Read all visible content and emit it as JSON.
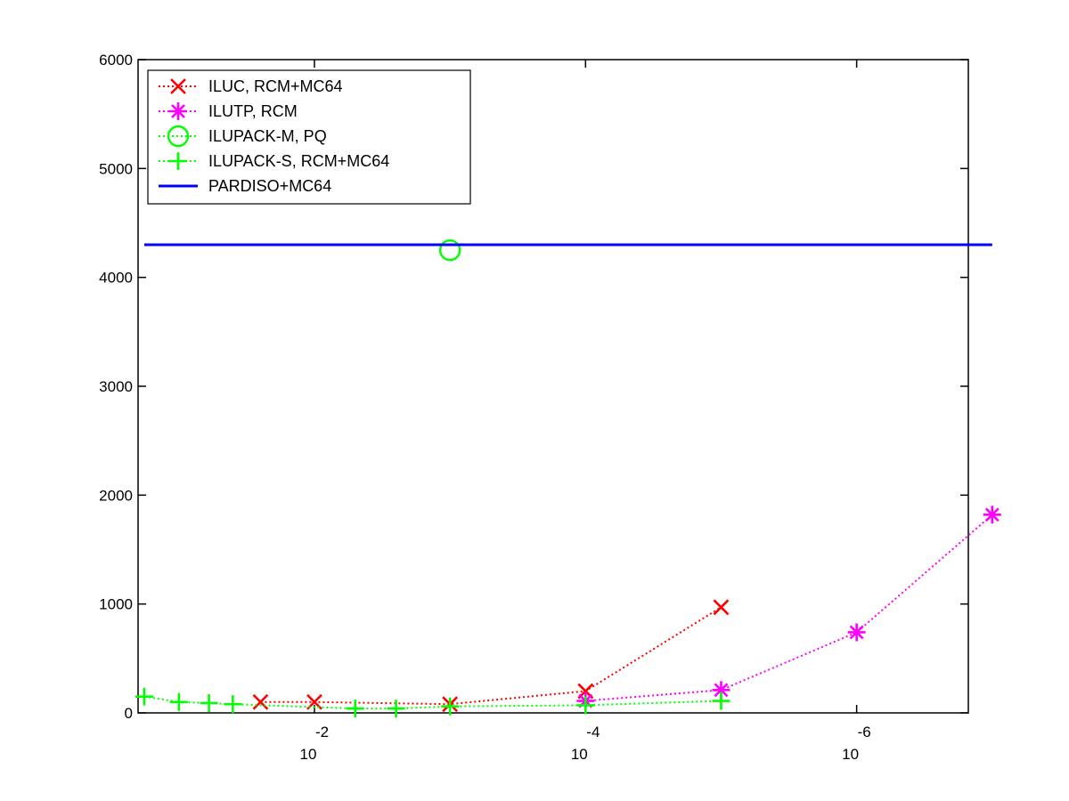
{
  "chart_data": {
    "type": "line",
    "title": "",
    "xlabel": "",
    "ylabel": "",
    "xscale": "log",
    "x_reversed": true,
    "xlim": [
      0.2,
      1.5e-07
    ],
    "ylim": [
      0,
      6000
    ],
    "grid": false,
    "legend_position": "top-left",
    "xticks": [
      {
        "value": 0.01,
        "base": "10",
        "exp": "-2"
      },
      {
        "value": 0.0001,
        "base": "10",
        "exp": "-4"
      },
      {
        "value": 1e-06,
        "base": "10",
        "exp": "-6"
      }
    ],
    "yticks": [
      0,
      1000,
      2000,
      3000,
      4000,
      5000,
      6000
    ],
    "series": [
      {
        "name": "ILUC, RCM+MC64",
        "color": "#ff0000",
        "marker": "x",
        "line": "dotted",
        "points": [
          {
            "x": 0.025,
            "y": 100
          },
          {
            "x": 0.01,
            "y": 100
          },
          {
            "x": 0.001,
            "y": 80
          },
          {
            "x": 0.0001,
            "y": 200
          },
          {
            "x": 1e-05,
            "y": 970
          }
        ]
      },
      {
        "name": "ILUTP, RCM",
        "color": "#ff00ff",
        "marker": "asterisk",
        "line": "dotted",
        "points": [
          {
            "x": 0.0001,
            "y": 110
          },
          {
            "x": 1e-05,
            "y": 210
          },
          {
            "x": 1e-06,
            "y": 740
          },
          {
            "x": 1e-07,
            "y": 1820
          }
        ]
      },
      {
        "name": "ILUPACK-M, PQ",
        "color": "#00ff00",
        "marker": "circle",
        "line": "dotted",
        "points": [
          {
            "x": 0.001,
            "y": 4250
          }
        ]
      },
      {
        "name": "ILUPACK-S, RCM+MC64",
        "color": "#00ff00",
        "marker": "plus",
        "line": "dotted",
        "points": [
          {
            "x": 0.18,
            "y": 150
          },
          {
            "x": 0.1,
            "y": 100
          },
          {
            "x": 0.06,
            "y": 90
          },
          {
            "x": 0.04,
            "y": 80
          },
          {
            "x": 0.005,
            "y": 40
          },
          {
            "x": 0.0025,
            "y": 40
          },
          {
            "x": 0.001,
            "y": 60
          },
          {
            "x": 0.0001,
            "y": 70
          },
          {
            "x": 1e-05,
            "y": 110
          }
        ]
      },
      {
        "name": "PARDISO+MC64",
        "color": "#0000ff",
        "marker": "none",
        "line": "solid",
        "points": [
          {
            "x": 0.18,
            "y": 4300
          },
          {
            "x": 1e-07,
            "y": 4300
          }
        ]
      }
    ]
  }
}
